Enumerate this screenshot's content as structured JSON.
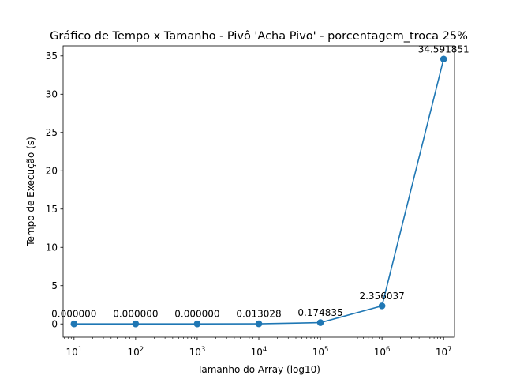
{
  "chart_data": {
    "type": "line",
    "title": "Gráfico de Tempo x Tamanho - Pivô 'Acha Pivo' - porcentagem_troca 25%",
    "xlabel": "Tamanho do Array (log10)",
    "ylabel": "Tempo de Execução (s)",
    "x_scale": "log",
    "x_ticks": [
      {
        "base": "10",
        "exp": "1"
      },
      {
        "base": "10",
        "exp": "2"
      },
      {
        "base": "10",
        "exp": "3"
      },
      {
        "base": "10",
        "exp": "4"
      },
      {
        "base": "10",
        "exp": "5"
      },
      {
        "base": "10",
        "exp": "6"
      },
      {
        "base": "10",
        "exp": "7"
      }
    ],
    "y_ticks": [
      "0",
      "5",
      "10",
      "15",
      "20",
      "25",
      "30",
      "35"
    ],
    "ylim": [
      -1.73,
      36.32
    ],
    "grid": false,
    "color": "#1f77b4",
    "x": [
      10,
      100,
      1000,
      10000,
      100000,
      1000000,
      10000000
    ],
    "values": [
      0.0,
      0.0,
      0.0,
      0.013028,
      0.174835,
      2.356037,
      34.591851
    ],
    "labels": [
      "0.000000",
      "0.000000",
      "0.000000",
      "0.013028",
      "0.174835",
      "2.356037",
      "34.591851"
    ]
  }
}
